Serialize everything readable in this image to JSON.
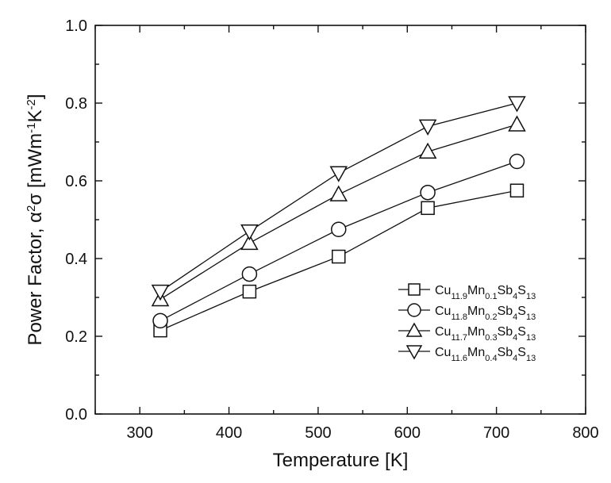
{
  "chart_data": {
    "type": "line",
    "xlabel": "Temperature [K]",
    "ylabel": "Power Factor, α²σ [mWm⁻¹K⁻²]",
    "ylabel_parts": {
      "prefix": "Power Factor, α",
      "sup1": "2",
      "mid": "σ [mWm",
      "sup2": "-1",
      "mid2": "K",
      "sup3": "-2",
      "suffix": "]"
    },
    "xlim": [
      250,
      800
    ],
    "ylim": [
      0.0,
      1.0
    ],
    "xticks": [
      300,
      400,
      500,
      600,
      700,
      800
    ],
    "yticks": [
      0.0,
      0.2,
      0.4,
      0.6,
      0.8,
      1.0
    ],
    "ytick_labels": [
      "0.0",
      "0.2",
      "0.4",
      "0.6",
      "0.8",
      "1.0"
    ],
    "grid": false,
    "legend_position": "right",
    "x": [
      323,
      423,
      523,
      623,
      723
    ],
    "series": [
      {
        "name": "Cu11.9Mn0.1Sb4S13",
        "label_parts": [
          "Cu",
          "11.9",
          "Mn",
          "0.1",
          "Sb",
          "4",
          "S",
          "13"
        ],
        "marker": "square",
        "values": [
          0.215,
          0.315,
          0.405,
          0.53,
          0.575
        ]
      },
      {
        "name": "Cu11.8Mn0.2Sb4S13",
        "label_parts": [
          "Cu",
          "11.8",
          "Mn",
          "0.2",
          "Sb",
          "4",
          "S",
          "13"
        ],
        "marker": "circle",
        "values": [
          0.24,
          0.36,
          0.475,
          0.57,
          0.65
        ]
      },
      {
        "name": "Cu11.7Mn0.3Sb4S13",
        "label_parts": [
          "Cu",
          "11.7",
          "Mn",
          "0.3",
          "Sb",
          "4",
          "S",
          "13"
        ],
        "marker": "triangle-up",
        "values": [
          0.295,
          0.44,
          0.565,
          0.675,
          0.745
        ]
      },
      {
        "name": "Cu11.6Mn0.4Sb4S13",
        "label_parts": [
          "Cu",
          "11.6",
          "Mn",
          "0.4",
          "Sb",
          "4",
          "S",
          "13"
        ],
        "marker": "triangle-down",
        "values": [
          0.315,
          0.47,
          0.62,
          0.74,
          0.8
        ]
      }
    ]
  }
}
